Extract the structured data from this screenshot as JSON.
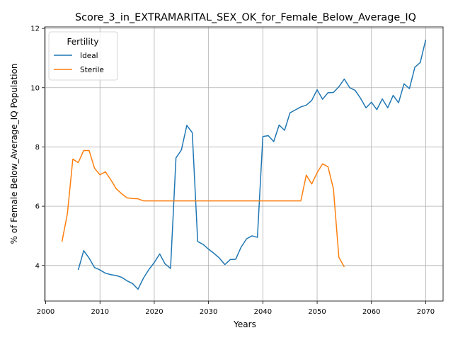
{
  "chart_data": {
    "type": "line",
    "title": "Score_3_in_EXTRAMARITAL_SEX_OK_for_Female_Below_Average_IQ",
    "xlabel": "Years",
    "ylabel": "% of Female Below_Average_IQ Population",
    "xlim": [
      1999.8,
      2073.2
    ],
    "ylim": [
      2.8,
      12.05
    ],
    "xticks": [
      2000,
      2010,
      2020,
      2030,
      2040,
      2050,
      2060,
      2070
    ],
    "yticks": [
      4,
      6,
      8,
      10,
      12
    ],
    "grid": true,
    "legend": {
      "title": "Fertility",
      "placement": "top-left"
    },
    "series": [
      {
        "name": "Ideal",
        "color": "#1f77b4",
        "x": [
          2006,
          2007,
          2008,
          2009,
          2010,
          2011,
          2012,
          2013,
          2014,
          2015,
          2016,
          2017,
          2018,
          2019,
          2020,
          2021,
          2022,
          2023,
          2024,
          2025,
          2026,
          2027,
          2028,
          2029,
          2030,
          2031,
          2032,
          2033,
          2034,
          2035,
          2036,
          2037,
          2038,
          2039,
          2040,
          2041,
          2042,
          2043,
          2044,
          2045,
          2046,
          2047,
          2048,
          2049,
          2050,
          2051,
          2052,
          2053,
          2054,
          2055,
          2056,
          2057,
          2058,
          2059,
          2060,
          2061,
          2062,
          2063,
          2064,
          2065,
          2066,
          2067,
          2068,
          2069,
          2070
        ],
        "y": [
          3.85,
          4.5,
          4.25,
          3.93,
          3.85,
          3.74,
          3.69,
          3.66,
          3.6,
          3.48,
          3.39,
          3.2,
          3.57,
          3.86,
          4.1,
          4.39,
          4.05,
          3.9,
          7.63,
          7.9,
          8.73,
          8.48,
          4.81,
          4.71,
          4.55,
          4.41,
          4.25,
          4.03,
          4.2,
          4.21,
          4.62,
          4.9,
          5.0,
          4.95,
          8.35,
          8.38,
          8.18,
          8.74,
          8.56,
          9.15,
          9.25,
          9.35,
          9.41,
          9.57,
          9.93,
          9.61,
          9.83,
          9.84,
          10.03,
          10.29,
          10.0,
          9.91,
          9.64,
          9.32,
          9.51,
          9.26,
          9.62,
          9.32,
          9.74,
          9.49,
          10.13,
          9.97,
          10.69,
          10.85,
          11.62
        ]
      },
      {
        "name": "Sterile",
        "color": "#ff7f0e",
        "x": [
          2003,
          2004,
          2005,
          2006,
          2007,
          2008,
          2009,
          2010,
          2011,
          2012,
          2013,
          2014,
          2015,
          2016,
          2017,
          2018,
          2019,
          2020,
          2021,
          2022,
          2023,
          2024,
          2025,
          2026,
          2027,
          2028,
          2029,
          2030,
          2031,
          2032,
          2033,
          2034,
          2035,
          2036,
          2037,
          2038,
          2039,
          2040,
          2041,
          2042,
          2043,
          2044,
          2045,
          2046,
          2047,
          2048,
          2049,
          2050,
          2051,
          2052,
          2053,
          2054,
          2055
        ],
        "y": [
          4.8,
          5.75,
          7.59,
          7.47,
          7.88,
          7.88,
          7.28,
          7.06,
          7.16,
          6.89,
          6.59,
          6.42,
          6.28,
          6.26,
          6.25,
          6.18,
          6.18,
          6.18,
          6.18,
          6.18,
          6.18,
          6.18,
          6.18,
          6.18,
          6.18,
          6.18,
          6.18,
          6.18,
          6.18,
          6.18,
          6.18,
          6.18,
          6.18,
          6.18,
          6.18,
          6.18,
          6.18,
          6.18,
          6.18,
          6.18,
          6.18,
          6.18,
          6.18,
          6.18,
          6.18,
          7.05,
          6.75,
          7.13,
          7.43,
          7.33,
          6.59,
          4.28,
          3.95
        ]
      }
    ]
  }
}
